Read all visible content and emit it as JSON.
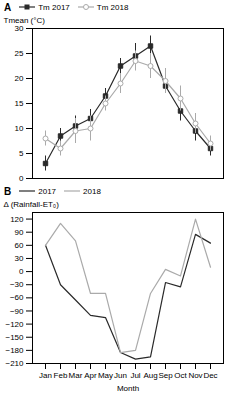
{
  "chart_data": [
    {
      "type": "line",
      "title": "A",
      "categories": [
        "Jan",
        "Feb",
        "Mar",
        "Apr",
        "May",
        "Jun",
        "Jul",
        "Aug",
        "Sep",
        "Oct",
        "Nov",
        "Dec"
      ],
      "series": [
        {
          "name": "Tm 2017",
          "color": "#2a2a2a",
          "marker": "square",
          "values": [
            3.0,
            8.5,
            10.5,
            12.0,
            16.5,
            22.5,
            24.5,
            26.5,
            18.5,
            13.5,
            9.5,
            6.0
          ],
          "errors": [
            1.5,
            1.5,
            2.0,
            1.8,
            1.5,
            1.5,
            2.5,
            2.0,
            1.5,
            2.0,
            2.0,
            1.5
          ]
        },
        {
          "name": "Tm 2018",
          "color": "#aaaaaa",
          "marker": "circle",
          "values": [
            8.0,
            6.0,
            9.5,
            10.0,
            15.0,
            19.0,
            23.5,
            22.5,
            19.5,
            16.0,
            11.0,
            7.0
          ],
          "errors": [
            1.5,
            1.5,
            2.5,
            2.5,
            1.5,
            2.0,
            2.0,
            2.5,
            2.5,
            2.5,
            2.0,
            1.5
          ]
        }
      ],
      "ylabel": "Tmean (°C)",
      "ylim": [
        0,
        30
      ],
      "yticks": [
        0,
        5,
        10,
        15,
        20,
        25,
        30
      ],
      "tick_labels": "y"
    },
    {
      "type": "line",
      "title": "B",
      "categories": [
        "Jan",
        "Feb",
        "Mar",
        "Apr",
        "May",
        "Jun",
        "Jul",
        "Aug",
        "Sep",
        "Oct",
        "Nov",
        "Dec"
      ],
      "series": [
        {
          "name": "2017",
          "color": "#2a2a2a",
          "values": [
            60,
            -30,
            -65,
            -100,
            -105,
            -185,
            -200,
            -195,
            -25,
            -35,
            85,
            65
          ]
        },
        {
          "name": "2018",
          "color": "#aaaaaa",
          "values": [
            60,
            110,
            70,
            -50,
            -50,
            -185,
            -180,
            -50,
            5,
            -10,
            120,
            10
          ]
        }
      ],
      "xlabel": "Month",
      "ylabel": "Δ (Rainfall-ET₀)",
      "ylim": [
        -210,
        135
      ],
      "yticks": [
        -210,
        -180,
        -150,
        -120,
        -90,
        -60,
        -30,
        0,
        30,
        60,
        90,
        120
      ]
    }
  ]
}
